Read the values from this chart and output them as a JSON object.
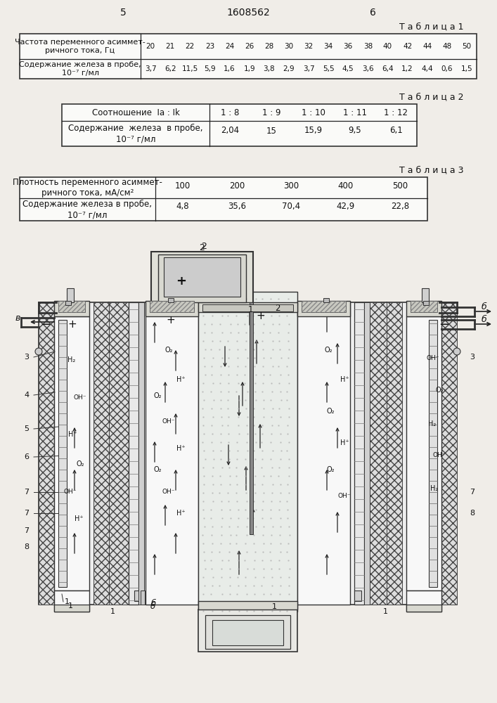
{
  "page_number_left": "5",
  "page_center": "1608562",
  "page_number_right": "6",
  "table1_title": "Т а б л и ц а 1",
  "table1_row1_label": "Частота переменного асиммет-\nричного тока, Гц",
  "table1_row1_values": [
    "20",
    "21",
    "22",
    "23",
    "24",
    "26",
    "28",
    "30",
    "32",
    "34",
    "36",
    "38",
    "40",
    "42",
    "44",
    "48",
    "50"
  ],
  "table1_row2_label": "Содержание железа в пробе,\n10⁻⁷ г/мл",
  "table1_row2_values": [
    "3,7",
    "6,2",
    "11,5",
    "5,9",
    "1,6",
    "1,9",
    "3,8",
    "2,9",
    "3,7",
    "5,5",
    "4,5",
    "3,6",
    "6,4",
    "1,2",
    "4,4",
    "0,6",
    "1,5"
  ],
  "table2_title": "Т а б л и ц а 2",
  "table2_row1_label": "Соотношение  Ia : Ik",
  "table2_row1_values": [
    "1 : 8",
    "1 : 9",
    "1 : 10",
    "1 : 11",
    "1 : 12"
  ],
  "table2_row2_label": "Содержание  железа  в пробе,\n10⁻⁷ г/мл",
  "table2_row2_values": [
    "2,04",
    "15",
    "15,9",
    "9,5",
    "6,1"
  ],
  "table3_title": "Т а б л и ц а 3",
  "table3_row1_label": "Плотность переменного асиммет-\nричного тока, мА/см²",
  "table3_row1_values": [
    "100",
    "200",
    "300",
    "400",
    "500"
  ],
  "table3_row2_label": "Содержание железа в пробе,\n10⁻⁷ г/мл",
  "table3_row2_values": [
    "4,8",
    "35,6",
    "70,4",
    "42,9",
    "22,8"
  ],
  "bg_color": "#f0ede8"
}
